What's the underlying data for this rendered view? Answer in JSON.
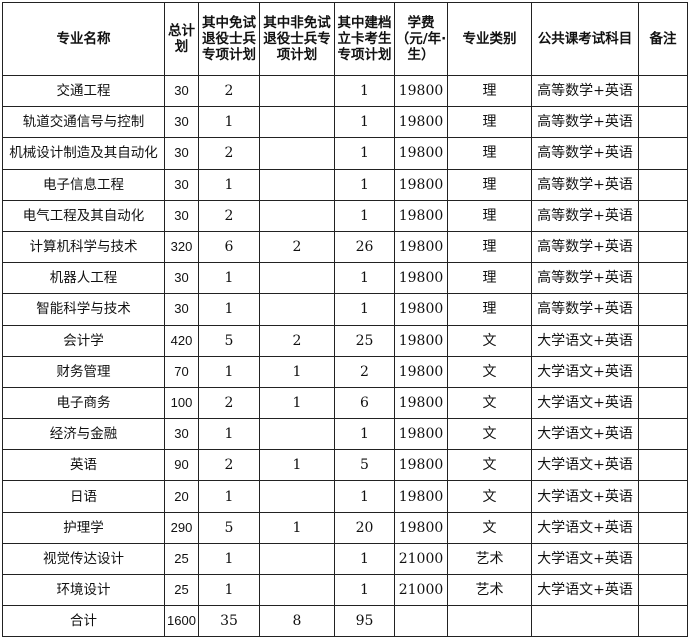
{
  "headers": [
    "专业名称",
    "总计划",
    "其中免试退役士兵专项计划",
    "其中非免试退役士兵专项计划",
    "其中建档立卡考生专项计划",
    "学费（元/年·生）",
    "专业类别",
    "公共课考试科目",
    "备注"
  ],
  "rows": [
    [
      "交通工程",
      "30",
      "2",
      "",
      "1",
      "19800",
      "理",
      "高等数学+英语",
      ""
    ],
    [
      "轨道交通信号与控制",
      "30",
      "1",
      "",
      "1",
      "19800",
      "理",
      "高等数学+英语",
      ""
    ],
    [
      "机械设计制造及其自动化",
      "30",
      "2",
      "",
      "1",
      "19800",
      "理",
      "高等数学+英语",
      ""
    ],
    [
      "电子信息工程",
      "30",
      "1",
      "",
      "1",
      "19800",
      "理",
      "高等数学+英语",
      ""
    ],
    [
      "电气工程及其自动化",
      "30",
      "2",
      "",
      "1",
      "19800",
      "理",
      "高等数学+英语",
      ""
    ],
    [
      "计算机科学与技术",
      "320",
      "6",
      "2",
      "26",
      "19800",
      "理",
      "高等数学+英语",
      ""
    ],
    [
      "机器人工程",
      "30",
      "1",
      "",
      "1",
      "19800",
      "理",
      "高等数学+英语",
      ""
    ],
    [
      "智能科学与技术",
      "30",
      "1",
      "",
      "1",
      "19800",
      "理",
      "高等数学+英语",
      ""
    ],
    [
      "会计学",
      "420",
      "5",
      "2",
      "25",
      "19800",
      "文",
      "大学语文+英语",
      ""
    ],
    [
      "财务管理",
      "70",
      "1",
      "1",
      "2",
      "19800",
      "文",
      "大学语文+英语",
      ""
    ],
    [
      "电子商务",
      "100",
      "2",
      "1",
      "6",
      "19800",
      "文",
      "大学语文+英语",
      ""
    ],
    [
      "经济与金融",
      "30",
      "1",
      "",
      "1",
      "19800",
      "文",
      "大学语文+英语",
      ""
    ],
    [
      "英语",
      "90",
      "2",
      "1",
      "5",
      "19800",
      "文",
      "大学语文+英语",
      ""
    ],
    [
      "日语",
      "20",
      "1",
      "",
      "1",
      "19800",
      "文",
      "大学语文+英语",
      ""
    ],
    [
      "护理学",
      "290",
      "5",
      "1",
      "20",
      "19800",
      "文",
      "大学语文+英语",
      ""
    ],
    [
      "视觉传达设计",
      "25",
      "1",
      "",
      "1",
      "21000",
      "艺术",
      "大学语文+英语",
      ""
    ],
    [
      "环境设计",
      "25",
      "1",
      "",
      "1",
      "21000",
      "艺术",
      "大学语文+英语",
      ""
    ],
    [
      "合计",
      "1600",
      "35",
      "8",
      "95",
      "",
      "",
      "",
      ""
    ]
  ]
}
